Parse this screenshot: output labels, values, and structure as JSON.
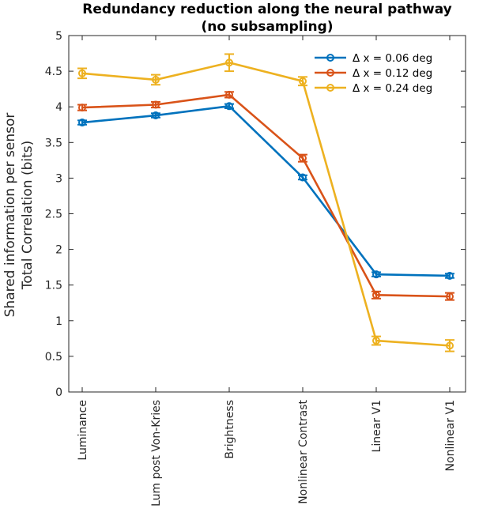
{
  "chart_data": {
    "type": "line",
    "title": "Redundancy reduction along the neural pathway",
    "subtitle": "(no subsampling)",
    "ylabel_line1": "Shared information per sensor",
    "ylabel_line2": "Total Correlation (bits)",
    "xlabel": "",
    "categories": [
      "Luminance",
      "Lum post Von-Kries",
      "Brightness",
      "Nonlinear Contrast",
      "Linear V1",
      "Nonlinear V1"
    ],
    "ylim": [
      0,
      5
    ],
    "yticks": [
      "0",
      "0.5",
      "1",
      "1.5",
      "2",
      "2.5",
      "3",
      "3.5",
      "4",
      "4.5",
      "5"
    ],
    "grid": false,
    "legend_position": "top-right",
    "series": [
      {
        "name": "Δ x = 0.06 deg",
        "color": "#0072BD",
        "values": [
          3.78,
          3.88,
          4.01,
          3.01,
          1.65,
          1.63
        ],
        "errors": [
          0.03,
          0.03,
          0.03,
          0.03,
          0.03,
          0.03
        ]
      },
      {
        "name": "Δ x = 0.12 deg",
        "color": "#D95319",
        "values": [
          3.99,
          4.03,
          4.17,
          3.28,
          1.36,
          1.34
        ],
        "errors": [
          0.04,
          0.04,
          0.04,
          0.05,
          0.05,
          0.05
        ]
      },
      {
        "name": "Δ x = 0.24 deg",
        "color": "#EDB120",
        "values": [
          4.47,
          4.38,
          4.62,
          4.36,
          0.72,
          0.65
        ],
        "errors": [
          0.07,
          0.07,
          0.12,
          0.06,
          0.06,
          0.08
        ]
      }
    ]
  }
}
